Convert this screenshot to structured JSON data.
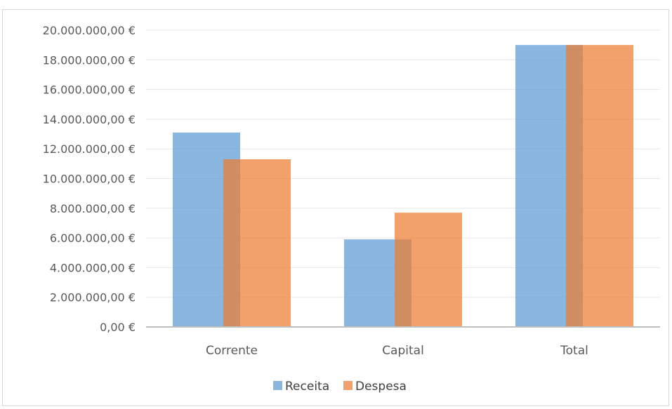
{
  "chart_data": {
    "type": "bar",
    "categories": [
      "Corrente",
      "Capital",
      "Total"
    ],
    "series": [
      {
        "name": "Receita",
        "values": [
          13100000,
          5900000,
          19000000
        ],
        "color": "#5B9BD5"
      },
      {
        "name": "Despesa",
        "values": [
          11300000,
          7700000,
          19000000
        ],
        "color": "#ED7D31"
      }
    ],
    "ylim": [
      0,
      20000000
    ],
    "yticks": [
      0,
      2000000,
      4000000,
      6000000,
      8000000,
      10000000,
      12000000,
      14000000,
      16000000,
      18000000,
      20000000
    ],
    "ytick_labels": [
      "0,00 €",
      "2.000.000,00 €",
      "4.000.000,00 €",
      "6.000.000,00 €",
      "8.000.000,00 €",
      "10.000.000,00 €",
      "12.000.000,00 €",
      "14.000.000,00 €",
      "16.000.000,00 €",
      "18.000.000,00 €",
      "20.000.000,00 €"
    ],
    "grid": true,
    "legend_position": "bottom",
    "bar_overlap": true
  }
}
